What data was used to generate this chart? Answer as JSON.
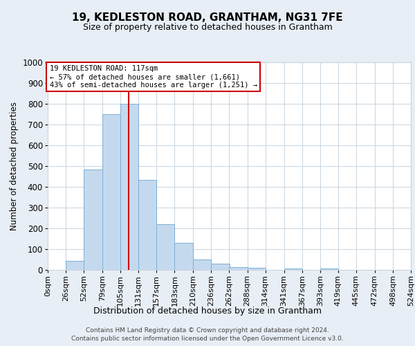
{
  "title": "19, KEDLESTON ROAD, GRANTHAM, NG31 7FE",
  "subtitle": "Size of property relative to detached houses in Grantham",
  "xlabel": "Distribution of detached houses by size in Grantham",
  "ylabel": "Number of detached properties",
  "bar_edges": [
    0,
    26,
    52,
    79,
    105,
    131,
    157,
    183,
    210,
    236,
    262,
    288,
    314,
    341,
    367,
    393,
    419,
    445,
    472,
    498,
    524
  ],
  "bar_heights": [
    0,
    45,
    485,
    750,
    800,
    435,
    220,
    130,
    50,
    30,
    15,
    10,
    0,
    8,
    0,
    8,
    0,
    0,
    0,
    0
  ],
  "bar_color": "#c5d9ee",
  "bar_edgecolor": "#7aafd4",
  "vline_x": 117,
  "vline_color": "#cc0000",
  "ylim": [
    0,
    1000
  ],
  "annotation_line1": "19 KEDLESTON ROAD: 117sqm",
  "annotation_line2": "← 57% of detached houses are smaller (1,661)",
  "annotation_line3": "43% of semi-detached houses are larger (1,251) →",
  "annotation_box_color": "#cc0000",
  "footnote1": "Contains HM Land Registry data © Crown copyright and database right 2024.",
  "footnote2": "Contains public sector information licensed under the Open Government Licence v3.0.",
  "background_color": "#e8eef5",
  "plot_background": "#ffffff",
  "grid_color": "#c8d4e0",
  "title_fontsize": 11,
  "subtitle_fontsize": 9,
  "tick_label_fontsize": 8,
  "ylabel_fontsize": 8.5,
  "xlabel_fontsize": 9,
  "footnote_fontsize": 6.5
}
